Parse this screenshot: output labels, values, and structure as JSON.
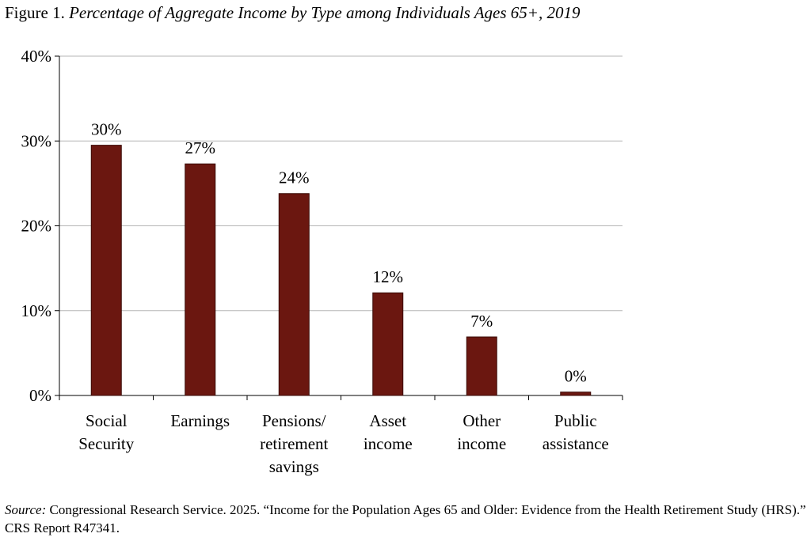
{
  "figure": {
    "number": "Figure 1.",
    "title": "Percentage of Aggregate Income by Type among Individuals Ages 65+, 2019"
  },
  "source": {
    "label": "Source:",
    "text": "Congressional Research Service. 2025. “Income for the Population Ages 65 and Older: Evidence from the Health Retirement Study (HRS).” CRS Report R47341."
  },
  "chart_data": {
    "type": "bar",
    "categories": [
      [
        "Social",
        "Security"
      ],
      [
        "Earnings"
      ],
      [
        "Pensions/",
        "retirement",
        "savings"
      ],
      [
        "Asset",
        "income"
      ],
      [
        "Other",
        "income"
      ],
      [
        "Public",
        "assistance"
      ]
    ],
    "values": [
      29.5,
      27.3,
      23.8,
      12.1,
      6.9,
      0.4
    ],
    "data_labels": [
      "30%",
      "27%",
      "24%",
      "12%",
      "7%",
      "0%"
    ],
    "yticks": [
      0,
      10,
      20,
      30,
      40
    ],
    "ytick_labels": [
      "0%",
      "10%",
      "20%",
      "30%",
      "40%"
    ],
    "ylim": [
      0,
      40
    ],
    "grid": true,
    "legend": "none",
    "bar_color": "#6b1710",
    "grid_color": "#b5b5b5"
  }
}
